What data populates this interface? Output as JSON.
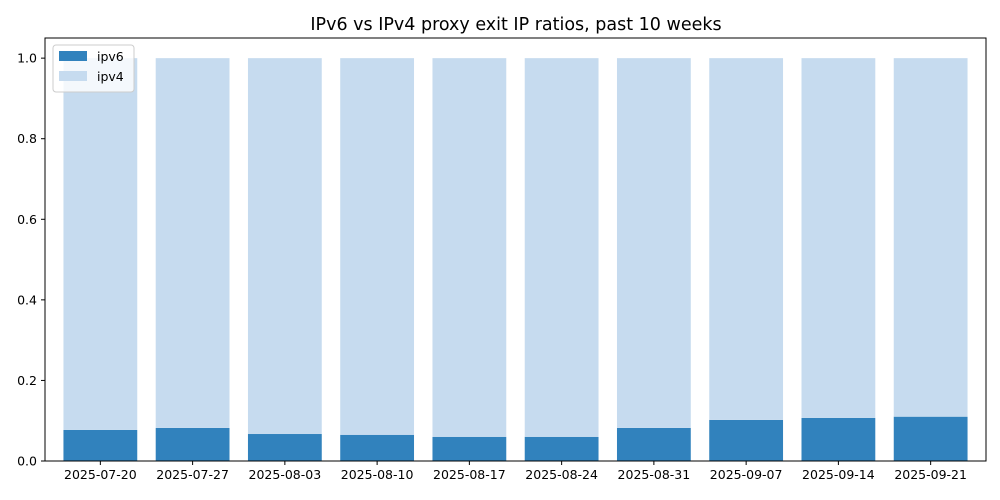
{
  "chart_data": {
    "type": "bar",
    "stacked": true,
    "title": "IPv6 vs IPv4 proxy exit IP ratios, past 10 weeks",
    "xlabel": "",
    "ylabel": "",
    "ylim": [
      0,
      1.05
    ],
    "yticks": [
      "0.0",
      "0.2",
      "0.4",
      "0.6",
      "0.8",
      "1.0"
    ],
    "grid": false,
    "legend_position": "top-left",
    "categories": [
      "2025-07-20",
      "2025-07-27",
      "2025-08-03",
      "2025-08-10",
      "2025-08-17",
      "2025-08-24",
      "2025-08-31",
      "2025-09-07",
      "2025-09-14",
      "2025-09-21"
    ],
    "series": [
      {
        "name": "ipv6",
        "color": "#3182bd",
        "values": [
          0.077,
          0.082,
          0.067,
          0.065,
          0.06,
          0.06,
          0.082,
          0.102,
          0.107,
          0.11
        ]
      },
      {
        "name": "ipv4",
        "color": "#c6dbef",
        "values": [
          0.923,
          0.918,
          0.933,
          0.935,
          0.94,
          0.94,
          0.918,
          0.898,
          0.893,
          0.89
        ]
      }
    ]
  }
}
